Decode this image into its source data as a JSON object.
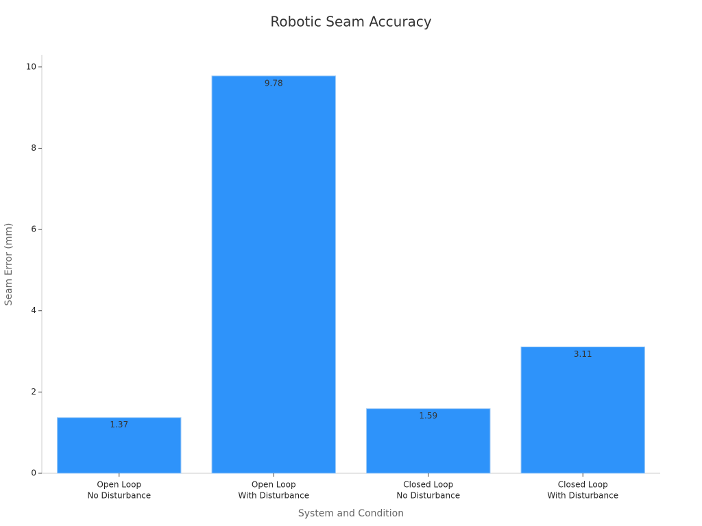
{
  "chart_data": {
    "type": "bar",
    "title": "Robotic Seam Accuracy",
    "x_label": "System and Condition",
    "y_label": "Seam Error (mm)",
    "categories": [
      [
        "Open Loop",
        "No Disturbance"
      ],
      [
        "Open Loop",
        "With Disturbance"
      ],
      [
        "Closed Loop",
        "No Disturbance"
      ],
      [
        "Closed Loop",
        "With Disturbance"
      ]
    ],
    "values": [
      1.37,
      9.78,
      1.59,
      3.11
    ],
    "color": "#2e93fa",
    "ylim": [
      0,
      10.3
    ],
    "yticks": [
      0,
      2,
      4,
      6,
      8,
      10
    ],
    "grid": false
  }
}
